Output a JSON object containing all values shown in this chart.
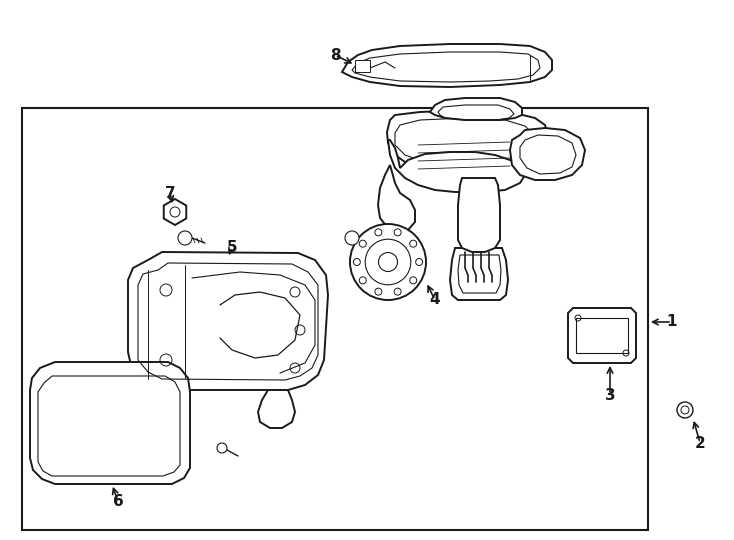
{
  "bg_color": "#ffffff",
  "line_color": "#1a1a1a",
  "figure_width": 7.34,
  "figure_height": 5.4,
  "dpi": 100
}
